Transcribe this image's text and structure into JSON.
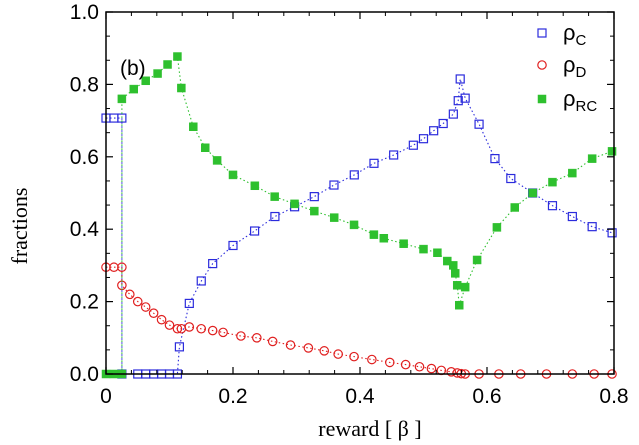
{
  "chart_data": {
    "type": "scatter",
    "panel_label": "(b)",
    "xlabel": "reward  [ β ]",
    "ylabel": "fractions",
    "xlim": [
      0,
      0.8
    ],
    "ylim": [
      0,
      1.0
    ],
    "xticks": [
      "0",
      "0.2",
      "0.4",
      "0.6",
      "0.8"
    ],
    "yticks": [
      "0.0",
      "0.2",
      "0.4",
      "0.6",
      "0.8",
      "1.0"
    ],
    "x_tick_values": [
      0,
      0.2,
      0.4,
      0.6,
      0.8
    ],
    "y_tick_values": [
      0,
      0.2,
      0.4,
      0.6,
      0.8,
      1.0
    ],
    "legend_position": "top-right",
    "series": [
      {
        "name_base": "ρ",
        "name_sub": "C",
        "color": "#2b2bdc",
        "marker": "open-square",
        "line": "dotted",
        "points": [
          [
            0,
            0.707
          ],
          [
            0.0125,
            0.707
          ],
          [
            0.025,
            0.707
          ],
          [
            0.025,
            0.0
          ],
          [
            0.05,
            0.0
          ],
          [
            0.0625,
            0.0
          ],
          [
            0.075,
            0.0
          ],
          [
            0.0875,
            0.0
          ],
          [
            0.1,
            0.0
          ],
          [
            0.1125,
            0.0
          ],
          [
            0.1156,
            0.075
          ],
          [
            0.1312,
            0.195
          ],
          [
            0.15,
            0.257
          ],
          [
            0.168,
            0.305
          ],
          [
            0.2,
            0.355
          ],
          [
            0.234,
            0.395
          ],
          [
            0.266,
            0.435
          ],
          [
            0.297,
            0.462
          ],
          [
            0.328,
            0.49
          ],
          [
            0.359,
            0.522
          ],
          [
            0.391,
            0.55
          ],
          [
            0.422,
            0.582
          ],
          [
            0.453,
            0.605
          ],
          [
            0.484,
            0.632
          ],
          [
            0.5,
            0.65
          ],
          [
            0.516,
            0.672
          ],
          [
            0.531,
            0.692
          ],
          [
            0.547,
            0.718
          ],
          [
            0.5547,
            0.755
          ],
          [
            0.5578,
            0.815
          ],
          [
            0.5656,
            0.762
          ],
          [
            0.5875,
            0.69
          ],
          [
            0.6125,
            0.595
          ],
          [
            0.6375,
            0.54
          ],
          [
            0.6719,
            0.5
          ],
          [
            0.7031,
            0.465
          ],
          [
            0.7344,
            0.435
          ],
          [
            0.7656,
            0.407
          ],
          [
            0.797,
            0.39
          ]
        ]
      },
      {
        "name_base": "ρ",
        "name_sub": "D",
        "color": "#e02020",
        "marker": "open-circle",
        "line": "dotted",
        "points": [
          [
            0,
            0.295
          ],
          [
            0.0125,
            0.295
          ],
          [
            0.025,
            0.295
          ],
          [
            0.025,
            0.245
          ],
          [
            0.0375,
            0.22
          ],
          [
            0.05,
            0.2
          ],
          [
            0.0625,
            0.185
          ],
          [
            0.075,
            0.168
          ],
          [
            0.0875,
            0.15
          ],
          [
            0.1,
            0.135
          ],
          [
            0.1125,
            0.125
          ],
          [
            0.1187,
            0.125
          ],
          [
            0.1312,
            0.13
          ],
          [
            0.15,
            0.125
          ],
          [
            0.168,
            0.12
          ],
          [
            0.1844,
            0.115
          ],
          [
            0.2125,
            0.105
          ],
          [
            0.2375,
            0.1
          ],
          [
            0.2625,
            0.09
          ],
          [
            0.2906,
            0.08
          ],
          [
            0.3187,
            0.072
          ],
          [
            0.3437,
            0.064
          ],
          [
            0.3656,
            0.055
          ],
          [
            0.3906,
            0.048
          ],
          [
            0.4187,
            0.04
          ],
          [
            0.4469,
            0.032
          ],
          [
            0.4719,
            0.026
          ],
          [
            0.4937,
            0.02
          ],
          [
            0.5125,
            0.015
          ],
          [
            0.5281,
            0.01
          ],
          [
            0.5437,
            0.006
          ],
          [
            0.5531,
            0.003
          ],
          [
            0.5594,
            0.001
          ],
          [
            0.5656,
            0.0
          ],
          [
            0.5875,
            0.0
          ],
          [
            0.6187,
            0.0
          ],
          [
            0.6531,
            0.0
          ],
          [
            0.6937,
            0.0
          ],
          [
            0.7344,
            0.0
          ],
          [
            0.7687,
            0.0
          ],
          [
            0.7969,
            0.0
          ]
        ]
      },
      {
        "name_base": "ρ",
        "name_sub": "RC",
        "color": "#2ec02e",
        "marker": "filled-square",
        "line": "dotted",
        "points": [
          [
            0,
            0.0
          ],
          [
            0.0125,
            0.0
          ],
          [
            0.025,
            0.0
          ],
          [
            0.025,
            0.76
          ],
          [
            0.0437,
            0.787
          ],
          [
            0.0625,
            0.81
          ],
          [
            0.0812,
            0.83
          ],
          [
            0.0969,
            0.855
          ],
          [
            0.1125,
            0.877
          ],
          [
            0.1187,
            0.79
          ],
          [
            0.1375,
            0.683
          ],
          [
            0.1563,
            0.625
          ],
          [
            0.175,
            0.59
          ],
          [
            0.2,
            0.55
          ],
          [
            0.2344,
            0.52
          ],
          [
            0.2656,
            0.49
          ],
          [
            0.2969,
            0.47
          ],
          [
            0.3281,
            0.45
          ],
          [
            0.3594,
            0.432
          ],
          [
            0.3906,
            0.412
          ],
          [
            0.4219,
            0.385
          ],
          [
            0.4375,
            0.375
          ],
          [
            0.4687,
            0.36
          ],
          [
            0.5,
            0.345
          ],
          [
            0.5219,
            0.335
          ],
          [
            0.5375,
            0.312
          ],
          [
            0.5469,
            0.3
          ],
          [
            0.55,
            0.278
          ],
          [
            0.5531,
            0.245
          ],
          [
            0.5563,
            0.19
          ],
          [
            0.5656,
            0.24
          ],
          [
            0.5844,
            0.315
          ],
          [
            0.6156,
            0.405
          ],
          [
            0.6437,
            0.46
          ],
          [
            0.6719,
            0.5
          ],
          [
            0.7031,
            0.53
          ],
          [
            0.7344,
            0.555
          ],
          [
            0.7656,
            0.595
          ],
          [
            0.7969,
            0.615
          ]
        ]
      }
    ]
  }
}
